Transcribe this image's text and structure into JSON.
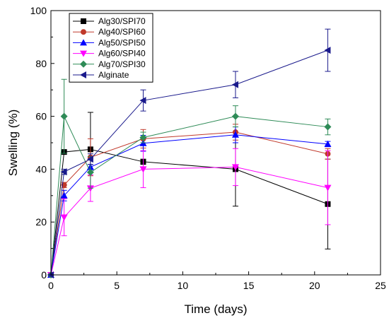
{
  "chart_data": {
    "type": "line",
    "xlabel": "Time (days)",
    "ylabel": "Swelling (%)",
    "xlim": [
      0,
      25
    ],
    "ylim": [
      0,
      100
    ],
    "x_ticks": [
      0,
      5,
      10,
      15,
      20,
      25
    ],
    "y_ticks": [
      0,
      20,
      40,
      60,
      80,
      100
    ],
    "grid": false,
    "legend_position": "top-left",
    "x": [
      0,
      1,
      3,
      7,
      14,
      21
    ],
    "series": [
      {
        "name": "Alg30/SPI70",
        "color": "#000000",
        "marker": "square",
        "values": [
          0,
          46.5,
          47.5,
          42.8,
          40,
          26.8
        ],
        "errors": [
          0,
          0.5,
          14,
          1,
          14,
          17
        ]
      },
      {
        "name": "Alg40/SPI60",
        "color": "#c0392b",
        "marker": "circle",
        "values": [
          0,
          34,
          44.5,
          51.5,
          54,
          45.8
        ],
        "errors": [
          0,
          1,
          7,
          3.5,
          3,
          2
        ]
      },
      {
        "name": "Alg50/SPI50",
        "color": "#0000ff",
        "marker": "triangle-up",
        "values": [
          0,
          30,
          40.8,
          49.8,
          53,
          49.5
        ],
        "errors": [
          0,
          2,
          1,
          3,
          3,
          1
        ]
      },
      {
        "name": "Alg60/SPI40",
        "color": "#ff00ff",
        "marker": "triangle-down",
        "values": [
          0,
          21.8,
          32.8,
          40,
          40.8,
          33
        ],
        "errors": [
          0,
          7,
          5,
          7,
          7,
          14
        ]
      },
      {
        "name": "Alg70/SPI30",
        "color": "#2e8b57",
        "marker": "diamond",
        "values": [
          0,
          60,
          38.8,
          52,
          60,
          56
        ],
        "errors": [
          0,
          14,
          6,
          2,
          4,
          3
        ]
      },
      {
        "name": "Alginate",
        "color": "#1a1a8c",
        "marker": "triangle-left",
        "values": [
          0,
          39,
          43.8,
          66,
          72,
          85
        ],
        "errors": [
          0,
          1,
          2,
          4,
          5,
          8
        ]
      }
    ]
  }
}
